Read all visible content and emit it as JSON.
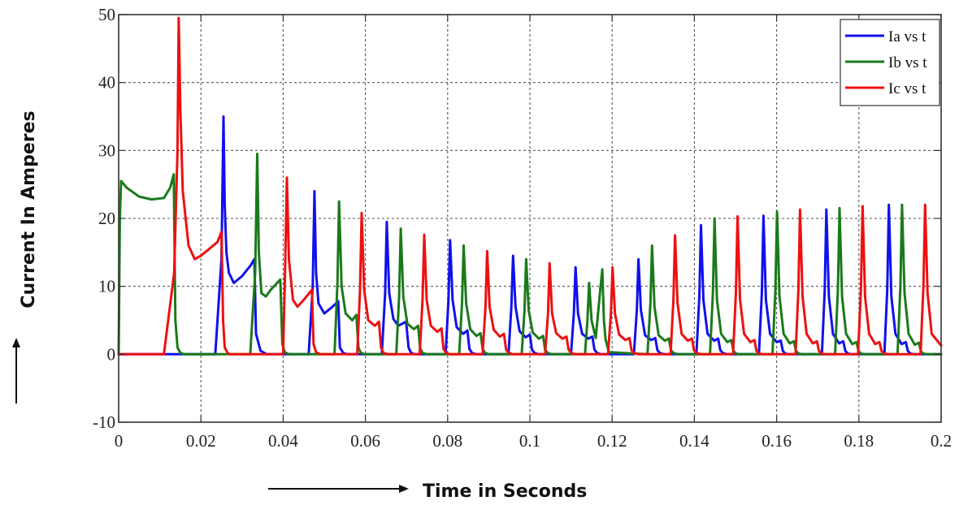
{
  "chart_data": {
    "type": "line",
    "xlabel": "Time in Seconds",
    "ylabel": "Current In Amperes",
    "xlim": [
      0,
      0.2
    ],
    "ylim": [
      -10,
      50
    ],
    "xticks": [
      0,
      0.02,
      0.04,
      0.06,
      0.08,
      0.1,
      0.12,
      0.14,
      0.16,
      0.18,
      0.2
    ],
    "xtick_labels": [
      "0",
      "0.02",
      "0.04",
      "0.06",
      "0.08",
      "0.1",
      "0.12",
      "0.14",
      "0.16",
      "0.18",
      "0.2"
    ],
    "yticks": [
      -10,
      0,
      10,
      20,
      30,
      40,
      50
    ],
    "ytick_labels": [
      "-10",
      "0",
      "10",
      "20",
      "30",
      "40",
      "50"
    ],
    "grid": true,
    "legend_position": "top-right",
    "series": [
      {
        "name": "Ia vs t",
        "color": "#1010ee",
        "x": [
          0,
          0.0235,
          0.025,
          0.0255,
          0.0258,
          0.0262,
          0.0268,
          0.028,
          0.03,
          0.032,
          0.033,
          0.0334,
          0.0345,
          0.036,
          0.0462,
          0.0472,
          0.0476,
          0.048,
          0.0486,
          0.05,
          0.052,
          0.0534,
          0.0538,
          0.0546,
          0.0556,
          0.064,
          0.0648,
          0.0652,
          0.0658,
          0.0668,
          0.068,
          0.0699,
          0.0705,
          0.0711,
          0.0721,
          0.0795,
          0.0802,
          0.0806,
          0.0812,
          0.0822,
          0.0838,
          0.0848,
          0.0853,
          0.0859,
          0.0869,
          0.0948,
          0.0955,
          0.0959,
          0.0965,
          0.0975,
          0.099,
          0.1,
          0.1005,
          0.1011,
          0.1021,
          0.11,
          0.1107,
          0.1111,
          0.1117,
          0.1127,
          0.1142,
          0.1152,
          0.1157,
          0.1163,
          0.1173,
          0.1253,
          0.126,
          0.1264,
          0.127,
          0.128,
          0.1295,
          0.1305,
          0.131,
          0.1316,
          0.1326,
          0.1405,
          0.1412,
          0.1416,
          0.1422,
          0.1432,
          0.1448,
          0.1458,
          0.1463,
          0.1469,
          0.1479,
          0.1557,
          0.1564,
          0.1568,
          0.1574,
          0.1584,
          0.16,
          0.161,
          0.1615,
          0.1621,
          0.1631,
          0.171,
          0.1717,
          0.1721,
          0.1727,
          0.1737,
          0.1752,
          0.1762,
          0.1767,
          0.1773,
          0.1783,
          0.1862,
          0.1869,
          0.1873,
          0.1879,
          0.1889,
          0.1904,
          0.1914,
          0.1919,
          0.1925,
          0.1935,
          0.2
        ],
        "y": [
          0,
          0,
          14,
          35,
          22,
          15,
          12,
          10.5,
          11.5,
          13,
          14,
          3,
          0.5,
          0,
          0,
          10,
          24,
          12,
          7.5,
          6,
          7,
          7.8,
          1,
          0.2,
          0,
          0,
          9,
          19.5,
          9,
          5.2,
          4.2,
          4.8,
          1,
          0.2,
          0,
          0,
          8,
          16.8,
          8,
          4,
          3,
          3.5,
          0.8,
          0.2,
          0,
          0,
          7,
          14.5,
          7,
          3.4,
          2.5,
          2.9,
          0.7,
          0.2,
          0,
          0,
          6,
          12.8,
          6,
          3,
          2.3,
          2.6,
          0.7,
          0.2,
          0,
          0,
          6.5,
          14,
          6.5,
          2.8,
          2.1,
          2.4,
          0.6,
          0.2,
          0,
          0,
          8.5,
          19,
          8,
          3,
          2,
          2.3,
          0.6,
          0.2,
          0,
          0,
          9,
          20.4,
          8,
          3,
          1.8,
          2,
          0.5,
          0.1,
          0,
          0,
          9.5,
          21.3,
          8.5,
          3,
          1.6,
          1.9,
          0.5,
          0.1,
          0,
          0,
          9.5,
          22,
          8.5,
          3,
          1.5,
          1.8,
          0.5,
          0.1,
          0,
          0
        ]
      },
      {
        "name": "Ib vs t",
        "color": "#1a7a1a",
        "x": [
          0,
          0.0003,
          0.0006,
          0.002,
          0.005,
          0.008,
          0.011,
          0.0125,
          0.0134,
          0.0138,
          0.0143,
          0.015,
          0.016,
          0.032,
          0.0332,
          0.0337,
          0.0341,
          0.0347,
          0.0358,
          0.037,
          0.0393,
          0.0398,
          0.0404,
          0.0414,
          0.0525,
          0.0532,
          0.0536,
          0.0542,
          0.0552,
          0.0568,
          0.0578,
          0.0583,
          0.0589,
          0.0599,
          0.0675,
          0.0682,
          0.0686,
          0.0692,
          0.0702,
          0.0718,
          0.0728,
          0.0733,
          0.0739,
          0.0749,
          0.0828,
          0.0835,
          0.0839,
          0.0845,
          0.0855,
          0.087,
          0.088,
          0.0885,
          0.0891,
          0.0901,
          0.098,
          0.0987,
          0.0991,
          0.0997,
          0.1007,
          0.1022,
          0.1032,
          0.1037,
          0.1043,
          0.1053,
          0.1134,
          0.114,
          0.1144,
          0.115,
          0.116,
          0.1172,
          0.1176,
          0.118,
          0.1184,
          0.1192,
          0.1286,
          0.1293,
          0.1297,
          0.1303,
          0.1313,
          0.1328,
          0.1338,
          0.1343,
          0.1349,
          0.1359,
          0.1438,
          0.1445,
          0.1449,
          0.1455,
          0.1465,
          0.148,
          0.149,
          0.1495,
          0.1501,
          0.1511,
          0.159,
          0.1597,
          0.1601,
          0.1607,
          0.1617,
          0.1632,
          0.1642,
          0.1647,
          0.1653,
          0.1663,
          0.1742,
          0.1749,
          0.1753,
          0.1759,
          0.1769,
          0.1784,
          0.1794,
          0.1799,
          0.1805,
          0.1815,
          0.1894,
          0.1901,
          0.1905,
          0.1911,
          0.1921,
          0.1936,
          0.1946,
          0.1951,
          0.1957,
          0.1967,
          0.2
        ],
        "y": [
          0,
          20,
          25.5,
          24.5,
          23.2,
          22.8,
          23,
          24.5,
          26.5,
          5,
          1,
          0.2,
          0,
          0,
          12,
          29.5,
          15,
          9,
          8.5,
          9.5,
          11,
          1.5,
          0.3,
          0,
          0,
          10.5,
          22.5,
          10,
          6,
          5,
          5.8,
          1,
          0.2,
          0,
          0,
          8.5,
          18.5,
          8.5,
          4.5,
          3.7,
          4.2,
          0.9,
          0.2,
          0,
          0,
          7.5,
          16,
          7.5,
          3.7,
          2.7,
          3.1,
          0.8,
          0.2,
          0,
          0,
          6.5,
          14,
          6.5,
          3.2,
          2.3,
          2.7,
          0.7,
          0.2,
          0,
          0,
          5,
          10.5,
          5,
          2.4,
          10,
          12.5,
          5,
          2.2,
          0.3,
          0,
          7.5,
          16,
          7,
          2.8,
          2,
          2.3,
          0.6,
          0.2,
          0,
          0,
          9,
          20,
          8,
          3,
          1.8,
          2.1,
          0.5,
          0.1,
          0,
          0,
          9.5,
          21,
          8.5,
          3,
          1.6,
          1.9,
          0.5,
          0.1,
          0,
          0,
          9.5,
          21.5,
          8.5,
          3,
          1.5,
          1.8,
          0.5,
          0.1,
          0,
          0,
          10,
          22,
          9,
          3,
          1.4,
          1.7,
          0.4,
          0.1,
          0,
          0
        ]
      },
      {
        "name": "Ic vs t",
        "color": "#ee1010",
        "x": [
          0,
          0.011,
          0.0135,
          0.0143,
          0.0146,
          0.015,
          0.0156,
          0.017,
          0.0185,
          0.02,
          0.024,
          0.025,
          0.0254,
          0.0258,
          0.0265,
          0.027,
          0.04,
          0.0405,
          0.0409,
          0.0414,
          0.0424,
          0.0435,
          0.045,
          0.047,
          0.0474,
          0.048,
          0.049,
          0.058,
          0.0587,
          0.0591,
          0.0597,
          0.0607,
          0.0623,
          0.0633,
          0.0638,
          0.0644,
          0.0654,
          0.0732,
          0.0739,
          0.0743,
          0.0749,
          0.0759,
          0.0775,
          0.0785,
          0.079,
          0.0796,
          0.0806,
          0.0885,
          0.0892,
          0.0896,
          0.0902,
          0.0912,
          0.0927,
          0.0937,
          0.0942,
          0.0948,
          0.0958,
          0.1037,
          0.1044,
          0.1048,
          0.1054,
          0.1064,
          0.1079,
          0.1089,
          0.1094,
          0.11,
          0.111,
          0.119,
          0.1197,
          0.1201,
          0.1207,
          0.1217,
          0.1232,
          0.1242,
          0.1247,
          0.1253,
          0.1263,
          0.1342,
          0.1349,
          0.1353,
          0.1359,
          0.1369,
          0.1384,
          0.1394,
          0.1399,
          0.1405,
          0.1415,
          0.1494,
          0.1501,
          0.1505,
          0.1511,
          0.1521,
          0.1536,
          0.1546,
          0.1551,
          0.1557,
          0.1567,
          0.1646,
          0.1653,
          0.1657,
          0.1663,
          0.1673,
          0.1688,
          0.1698,
          0.1703,
          0.1709,
          0.1719,
          0.1798,
          0.1805,
          0.1809,
          0.1815,
          0.1825,
          0.184,
          0.185,
          0.1855,
          0.1861,
          0.1871,
          0.195,
          0.1957,
          0.1961,
          0.1967,
          0.1977,
          0.2
        ],
        "y": [
          0,
          0,
          12,
          30,
          49.5,
          36,
          24,
          16,
          14,
          14.5,
          16.5,
          18,
          5,
          1,
          0.2,
          0,
          0,
          13,
          26,
          14,
          8,
          7,
          8,
          9.5,
          1.5,
          0.3,
          0,
          0,
          9.5,
          20.8,
          9.5,
          5,
          4.2,
          4.8,
          1,
          0.2,
          0,
          0,
          8,
          17.6,
          8,
          4.2,
          3.3,
          3.8,
          0.8,
          0.2,
          0,
          0,
          7,
          15.2,
          7,
          3.6,
          2.6,
          3,
          0.7,
          0.2,
          0,
          0,
          6,
          13.4,
          6,
          3.1,
          2.3,
          2.6,
          0.7,
          0.2,
          0,
          0,
          6,
          12.8,
          6,
          2.9,
          2.1,
          2.4,
          0.6,
          0.2,
          0,
          0,
          8,
          17.5,
          7.5,
          3,
          2,
          2.3,
          0.6,
          0.2,
          0,
          0,
          9,
          20.3,
          8,
          3,
          1.8,
          2.1,
          0.5,
          0.1,
          0,
          0,
          9.5,
          21.3,
          8.5,
          3,
          1.6,
          1.9,
          0.5,
          0.1,
          0,
          0,
          9.5,
          21.8,
          8.5,
          3,
          1.5,
          1.8,
          0.5,
          0.1,
          0,
          0,
          10,
          22,
          9,
          3,
          1.3
        ]
      }
    ]
  }
}
